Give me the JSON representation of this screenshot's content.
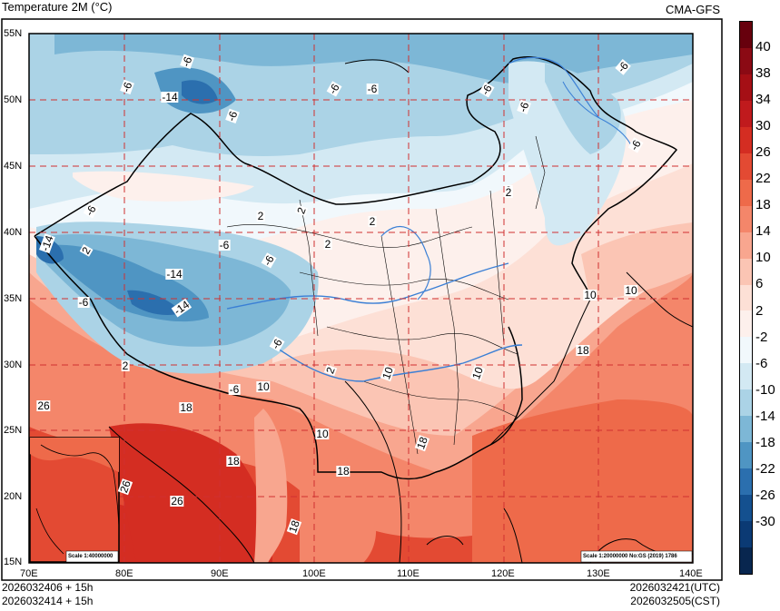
{
  "header": {
    "title": "Temperature  2M (°C)",
    "source": "CMA-GFS"
  },
  "footer": {
    "left_line1": "2026032406 + 15h",
    "left_line2": "2026032414 + 15h",
    "right_line1": "2026032421(UTC)",
    "right_line2": "2026032505(CST)"
  },
  "map": {
    "lat_labels": [
      "55N",
      "50N",
      "45N",
      "40N",
      "35N",
      "30N",
      "25N",
      "20N",
      "15N"
    ],
    "lon_labels": [
      "70E",
      "80E",
      "90E",
      "100E",
      "110E",
      "120E",
      "130E",
      "140E"
    ],
    "inset_scale": "Scale 1:40000000",
    "main_scale": "Scale 1:20000000 No:GS (2019) 1786",
    "contour_labels": [
      {
        "text": "-6"
      },
      {
        "text": "-6"
      },
      {
        "text": "-14"
      },
      {
        "text": "-6"
      },
      {
        "text": "-6"
      },
      {
        "text": "-6"
      },
      {
        "text": "-6"
      },
      {
        "text": "-6"
      },
      {
        "text": "-6"
      },
      {
        "text": "-6"
      },
      {
        "text": "-6"
      },
      {
        "text": "-14"
      },
      {
        "text": "2"
      },
      {
        "text": "2"
      },
      {
        "text": "2"
      },
      {
        "text": "2"
      },
      {
        "text": "2"
      },
      {
        "text": "-6"
      },
      {
        "text": "-6"
      },
      {
        "text": "-14"
      },
      {
        "text": "-14"
      },
      {
        "text": "-6"
      },
      {
        "text": "-6"
      },
      {
        "text": "2"
      },
      {
        "text": "-6"
      },
      {
        "text": "10"
      },
      {
        "text": "2"
      },
      {
        "text": "10"
      },
      {
        "text": "10"
      },
      {
        "text": "10"
      },
      {
        "text": "10"
      },
      {
        "text": "10"
      },
      {
        "text": "18"
      },
      {
        "text": "18"
      },
      {
        "text": "26"
      },
      {
        "text": "18"
      },
      {
        "text": "18"
      },
      {
        "text": "26"
      },
      {
        "text": "26"
      },
      {
        "text": "18"
      },
      {
        "text": "18"
      },
      {
        "text": "2"
      },
      {
        "text": "2"
      }
    ]
  },
  "colorbar": {
    "labels": [
      "40",
      "38",
      "34",
      "30",
      "26",
      "22",
      "18",
      "14",
      "10",
      "6",
      "2",
      "-2",
      "-6",
      "-10",
      "-14",
      "-18",
      "-22",
      "-26",
      "-30"
    ],
    "colors": [
      "#67000d",
      "#8b0a14",
      "#a50f15",
      "#c01a1d",
      "#d42d22",
      "#e34a33",
      "#ee6a4a",
      "#f4866a",
      "#f8a68f",
      "#fbc5b4",
      "#fde0d6",
      "#fdf0ec",
      "#f1f8fc",
      "#d3e9f3",
      "#abd3e6",
      "#7db7d6",
      "#4f95c3",
      "#2b6fae",
      "#14508f",
      "#0b3a74",
      "#08264f"
    ]
  }
}
